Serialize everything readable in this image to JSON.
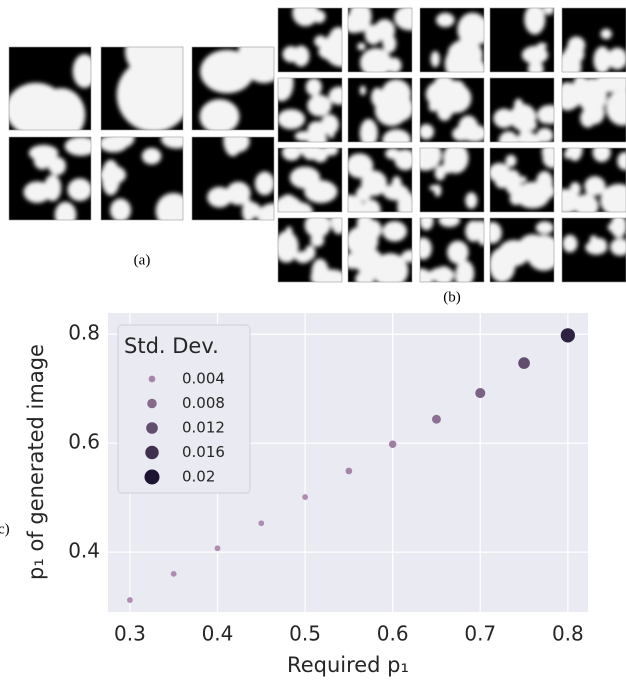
{
  "figure": {
    "label_a": "(a)",
    "label_b": "(b)",
    "label_c": "c)"
  },
  "chart_data": {
    "type": "scatter",
    "x_label": "Required p₁",
    "y_label": "p₁ of generated image",
    "x": [
      0.3,
      0.35,
      0.4,
      0.45,
      0.5,
      0.55,
      0.6,
      0.65,
      0.7,
      0.75,
      0.8
    ],
    "y": [
      0.312,
      0.36,
      0.407,
      0.453,
      0.501,
      0.549,
      0.598,
      0.644,
      0.692,
      0.747,
      0.798
    ],
    "sizes": [
      0.003,
      0.003,
      0.003,
      0.003,
      0.003,
      0.004,
      0.005,
      0.007,
      0.009,
      0.012,
      0.018
    ],
    "xlim": [
      0.275,
      0.823
    ],
    "ylim": [
      0.29,
      0.839
    ],
    "xticks": [
      0.3,
      0.4,
      0.5,
      0.6,
      0.7,
      0.8
    ],
    "yticks": [
      0.4,
      0.6,
      0.8
    ],
    "grid": true,
    "legend": {
      "title": "Std. Dev.",
      "values": [
        0.004,
        0.008,
        0.012,
        0.016,
        0.02
      ],
      "corner": "upper left"
    },
    "palette": [
      "#c9a2c6",
      "#1c1431"
    ]
  }
}
